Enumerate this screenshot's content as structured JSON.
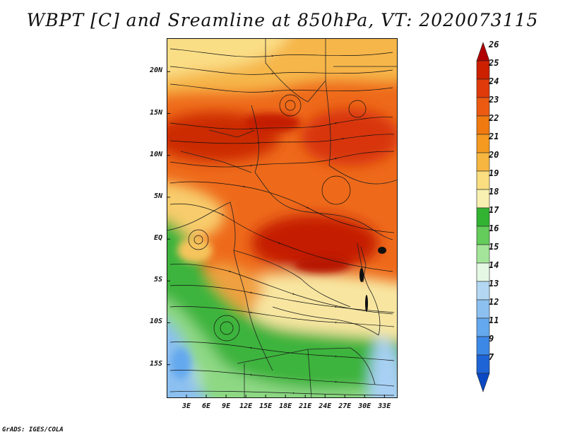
{
  "title": "WBPT [C] and Sreamline at 850hPa, VT: 2020073115",
  "credit": "GrADS: IGES/COLA",
  "map": {
    "variable": "Wet-bulb potential temperature",
    "level": "850hPa",
    "lon_range": [
      0,
      35
    ],
    "lat_range": [
      -19,
      24
    ],
    "lat_ticks": [
      "20N",
      "15N",
      "10N",
      "5N",
      "EQ",
      "5S",
      "10S",
      "15S"
    ],
    "lat_values": [
      20,
      15,
      10,
      5,
      0,
      -5,
      -10,
      -15
    ],
    "lon_ticks": [
      "3E",
      "6E",
      "9E",
      "12E",
      "15E",
      "18E",
      "21E",
      "24E",
      "27E",
      "30E",
      "33E"
    ],
    "lon_values": [
      3,
      6,
      9,
      12,
      15,
      18,
      21,
      24,
      27,
      30,
      33
    ]
  },
  "colorbar": {
    "levels": [
      "26",
      "25",
      "24",
      "23",
      "22",
      "21",
      "20",
      "19",
      "18",
      "17",
      "16",
      "15",
      "14",
      "13",
      "12",
      "11",
      "9",
      "7"
    ],
    "colors": [
      "#b00000",
      "#cc2000",
      "#e03a0a",
      "#ec5a12",
      "#f07a10",
      "#f49a20",
      "#f6b640",
      "#fade80",
      "#f8f0b0",
      "#32b432",
      "#64cc5a",
      "#a4e49a",
      "#e4f8e4",
      "#b4d8f4",
      "#8cc0f0",
      "#64a8ee",
      "#3c88e6",
      "#1e64d6",
      "#0a48c4"
    ]
  }
}
